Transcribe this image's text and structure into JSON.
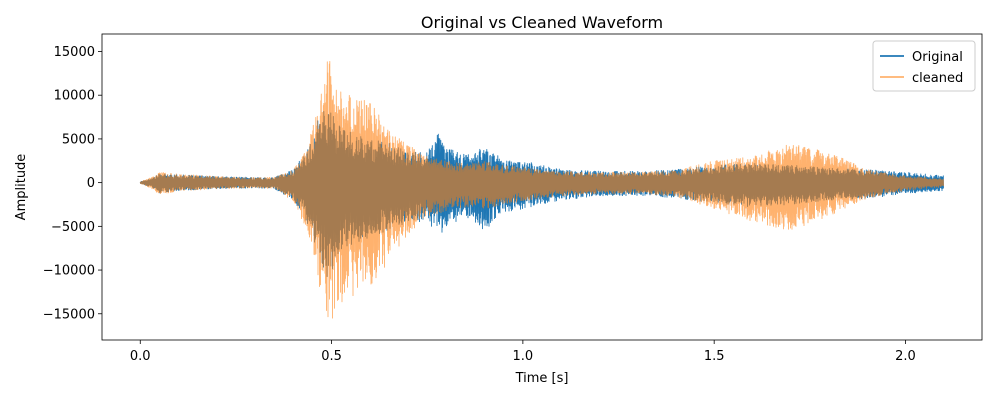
{
  "chart_data": {
    "type": "line",
    "title": "Original vs Cleaned Waveform",
    "xlabel": "Time [s]",
    "ylabel": "Amplitude",
    "xlim": [
      -0.1,
      2.2
    ],
    "ylim": [
      -18000,
      17000
    ],
    "xticks": [
      0.0,
      0.5,
      1.0,
      1.5,
      2.0
    ],
    "xtick_labels": [
      "0.0",
      "0.5",
      "1.0",
      "1.5",
      "2.0"
    ],
    "yticks": [
      -15000,
      -10000,
      -5000,
      0,
      5000,
      10000,
      15000
    ],
    "ytick_labels": [
      "−15000",
      "−10000",
      "−5000",
      "0",
      "5000",
      "10000",
      "15000"
    ],
    "grid": false,
    "legend_position": "upper-right",
    "duration_s": 2.1,
    "series": [
      {
        "name": "Original",
        "color": "#1f77b4",
        "opacity": 1.0,
        "envelope": {
          "t": [
            0.0,
            0.03,
            0.05,
            0.1,
            0.2,
            0.3,
            0.35,
            0.4,
            0.44,
            0.47,
            0.49,
            0.52,
            0.56,
            0.6,
            0.65,
            0.7,
            0.75,
            0.78,
            0.8,
            0.85,
            0.9,
            0.95,
            1.0,
            1.05,
            1.1,
            1.2,
            1.3,
            1.4,
            1.5,
            1.6,
            1.7,
            1.8,
            1.9,
            2.0,
            2.1
          ],
          "upper": [
            100,
            500,
            1000,
            900,
            700,
            600,
            600,
            1500,
            4000,
            8000,
            9000,
            6500,
            5500,
            5000,
            4500,
            3500,
            3500,
            5800,
            4000,
            3200,
            4200,
            2800,
            2500,
            2000,
            1500,
            1300,
            1300,
            1500,
            2000,
            2200,
            2000,
            1700,
            1500,
            1200,
            800
          ],
          "lower": [
            -100,
            -600,
            -1200,
            -900,
            -700,
            -600,
            -700,
            -2000,
            -5000,
            -9000,
            -11500,
            -8000,
            -7000,
            -6500,
            -5500,
            -4500,
            -4500,
            -6300,
            -5000,
            -4000,
            -5500,
            -3500,
            -3000,
            -2500,
            -2000,
            -1500,
            -1500,
            -1800,
            -2300,
            -2800,
            -2500,
            -2000,
            -1800,
            -1300,
            -900
          ]
        }
      },
      {
        "name": "cleaned",
        "color": "#ff7f0e",
        "opacity": 0.6,
        "envelope": {
          "t": [
            0.0,
            0.03,
            0.05,
            0.1,
            0.2,
            0.3,
            0.35,
            0.4,
            0.44,
            0.47,
            0.49,
            0.52,
            0.56,
            0.6,
            0.65,
            0.7,
            0.75,
            0.8,
            0.85,
            0.9,
            0.95,
            1.0,
            1.05,
            1.1,
            1.2,
            1.3,
            1.4,
            1.5,
            1.6,
            1.7,
            1.8,
            1.9,
            2.0,
            2.1
          ],
          "upper": [
            100,
            600,
            1200,
            1000,
            700,
            600,
            600,
            1500,
            4500,
            10000,
            15000,
            10500,
            9800,
            9500,
            6500,
            4500,
            3000,
            2500,
            2200,
            2500,
            2000,
            1800,
            1500,
            1300,
            1200,
            1200,
            1400,
            2500,
            3000,
            4500,
            3500,
            1500,
            800,
            400
          ],
          "lower": [
            -100,
            -700,
            -1400,
            -1000,
            -700,
            -600,
            -700,
            -2200,
            -6000,
            -12500,
            -16500,
            -14000,
            -13000,
            -12000,
            -9000,
            -6000,
            -4000,
            -3200,
            -2800,
            -3000,
            -2500,
            -2200,
            -1800,
            -1500,
            -1300,
            -1300,
            -1600,
            -3000,
            -4500,
            -5500,
            -3800,
            -1800,
            -900,
            -500
          ]
        }
      }
    ]
  }
}
